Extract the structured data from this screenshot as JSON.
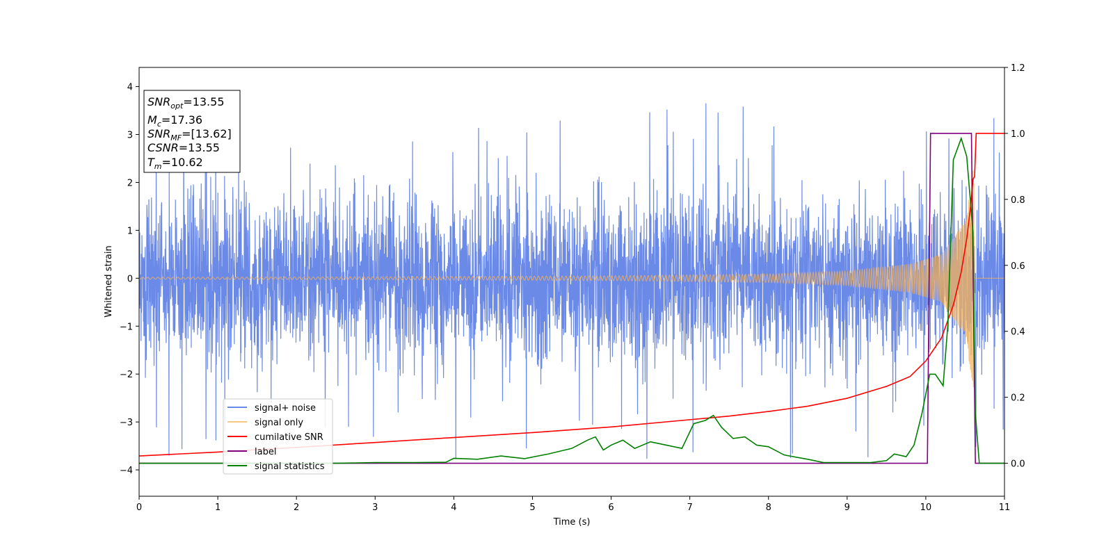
{
  "chart_data": {
    "type": "line",
    "xlabel": "Time (s)",
    "ylabel": "Whitened strain",
    "xlim": [
      0,
      11
    ],
    "ylim_left": [
      -4.55,
      4.4
    ],
    "ylim_right": [
      -0.1,
      1.2
    ],
    "x_ticks": [
      0,
      1,
      2,
      3,
      4,
      5,
      6,
      7,
      8,
      9,
      10,
      11
    ],
    "y_ticks_left": [
      -4,
      -3,
      -2,
      -1,
      0,
      1,
      2,
      3,
      4
    ],
    "y_ticks_right": [
      0.0,
      0.2,
      0.4,
      0.6,
      0.8,
      1.0,
      1.2
    ],
    "legend_position": "lower-left",
    "annotation": {
      "snr_opt": {
        "sym": "SNR",
        "sub": "opt",
        "val": "=13.55"
      },
      "mc": {
        "sym": "M",
        "sub": "c",
        "val": "=17.36"
      },
      "snr_mf": {
        "sym": "SNR",
        "sub": "MF",
        "val": "=[13.62]"
      },
      "csnr": {
        "sym": "CSNR",
        "sub": "",
        "val": "=13.55"
      },
      "tm": {
        "sym": "T",
        "sub": "m",
        "val": "=10.62"
      }
    },
    "series": [
      {
        "name": "signal+ noise",
        "axis": "left",
        "color": "#6b89e6",
        "kind": "noise",
        "sigma": 0.85,
        "spike_max": 4.0
      },
      {
        "name": "signal only",
        "axis": "left",
        "color": "#f5b35a",
        "kind": "chirp",
        "merger_time": 10.62,
        "amplitude_envelope": [
          [
            0,
            0.02
          ],
          [
            3,
            0.03
          ],
          [
            6,
            0.05
          ],
          [
            8,
            0.09
          ],
          [
            9,
            0.15
          ],
          [
            9.8,
            0.3
          ],
          [
            10.2,
            0.5
          ],
          [
            10.5,
            1.2
          ],
          [
            10.6,
            2.3
          ]
        ]
      },
      {
        "name": "cumilative SNR",
        "axis": "right",
        "color": "#ff0000",
        "points": [
          [
            0,
            0.022
          ],
          [
            1,
            0.034
          ],
          [
            2,
            0.048
          ],
          [
            3,
            0.063
          ],
          [
            4,
            0.078
          ],
          [
            5,
            0.093
          ],
          [
            6,
            0.11
          ],
          [
            7,
            0.132
          ],
          [
            7.5,
            0.143
          ],
          [
            8,
            0.157
          ],
          [
            8.5,
            0.173
          ],
          [
            9,
            0.197
          ],
          [
            9.5,
            0.233
          ],
          [
            9.8,
            0.263
          ],
          [
            10,
            0.31
          ],
          [
            10.2,
            0.38
          ],
          [
            10.35,
            0.48
          ],
          [
            10.45,
            0.58
          ],
          [
            10.52,
            0.68
          ],
          [
            10.57,
            0.78
          ],
          [
            10.6,
            0.86
          ],
          [
            10.62,
            0.87
          ],
          [
            10.64,
            1.0
          ],
          [
            11,
            1.0
          ]
        ]
      },
      {
        "name": "label",
        "axis": "right",
        "color": "#800080",
        "points": [
          [
            0,
            0.0
          ],
          [
            10.02,
            0.0
          ],
          [
            10.06,
            1.0
          ],
          [
            10.58,
            1.0
          ],
          [
            10.63,
            0.0
          ],
          [
            11,
            0.0
          ]
        ]
      },
      {
        "name": "signal statistics",
        "axis": "right",
        "color": "#008000",
        "points": [
          [
            0,
            0.0
          ],
          [
            2.5,
            0.0
          ],
          [
            3,
            0.002
          ],
          [
            3.5,
            0.002
          ],
          [
            3.9,
            0.003
          ],
          [
            4,
            0.015
          ],
          [
            4.3,
            0.012
          ],
          [
            4.6,
            0.022
          ],
          [
            4.9,
            0.014
          ],
          [
            5.2,
            0.028
          ],
          [
            5.5,
            0.045
          ],
          [
            5.7,
            0.07
          ],
          [
            5.8,
            0.08
          ],
          [
            5.9,
            0.04
          ],
          [
            6,
            0.055
          ],
          [
            6.15,
            0.07
          ],
          [
            6.3,
            0.045
          ],
          [
            6.5,
            0.065
          ],
          [
            6.7,
            0.055
          ],
          [
            6.9,
            0.045
          ],
          [
            7.05,
            0.12
          ],
          [
            7.2,
            0.13
          ],
          [
            7.3,
            0.145
          ],
          [
            7.4,
            0.11
          ],
          [
            7.55,
            0.075
          ],
          [
            7.7,
            0.08
          ],
          [
            7.85,
            0.055
          ],
          [
            8,
            0.05
          ],
          [
            8.2,
            0.025
          ],
          [
            8.5,
            0.012
          ],
          [
            8.7,
            0.002
          ],
          [
            9,
            0.002
          ],
          [
            9.3,
            0.002
          ],
          [
            9.5,
            0.008
          ],
          [
            9.6,
            0.028
          ],
          [
            9.75,
            0.02
          ],
          [
            9.85,
            0.055
          ],
          [
            9.95,
            0.15
          ],
          [
            10.05,
            0.27
          ],
          [
            10.12,
            0.27
          ],
          [
            10.22,
            0.235
          ],
          [
            10.28,
            0.42
          ],
          [
            10.35,
            0.92
          ],
          [
            10.45,
            0.985
          ],
          [
            10.52,
            0.93
          ],
          [
            10.6,
            0.7
          ],
          [
            10.63,
            0.15
          ],
          [
            10.68,
            0.0
          ],
          [
            11,
            0.0
          ]
        ]
      }
    ]
  }
}
